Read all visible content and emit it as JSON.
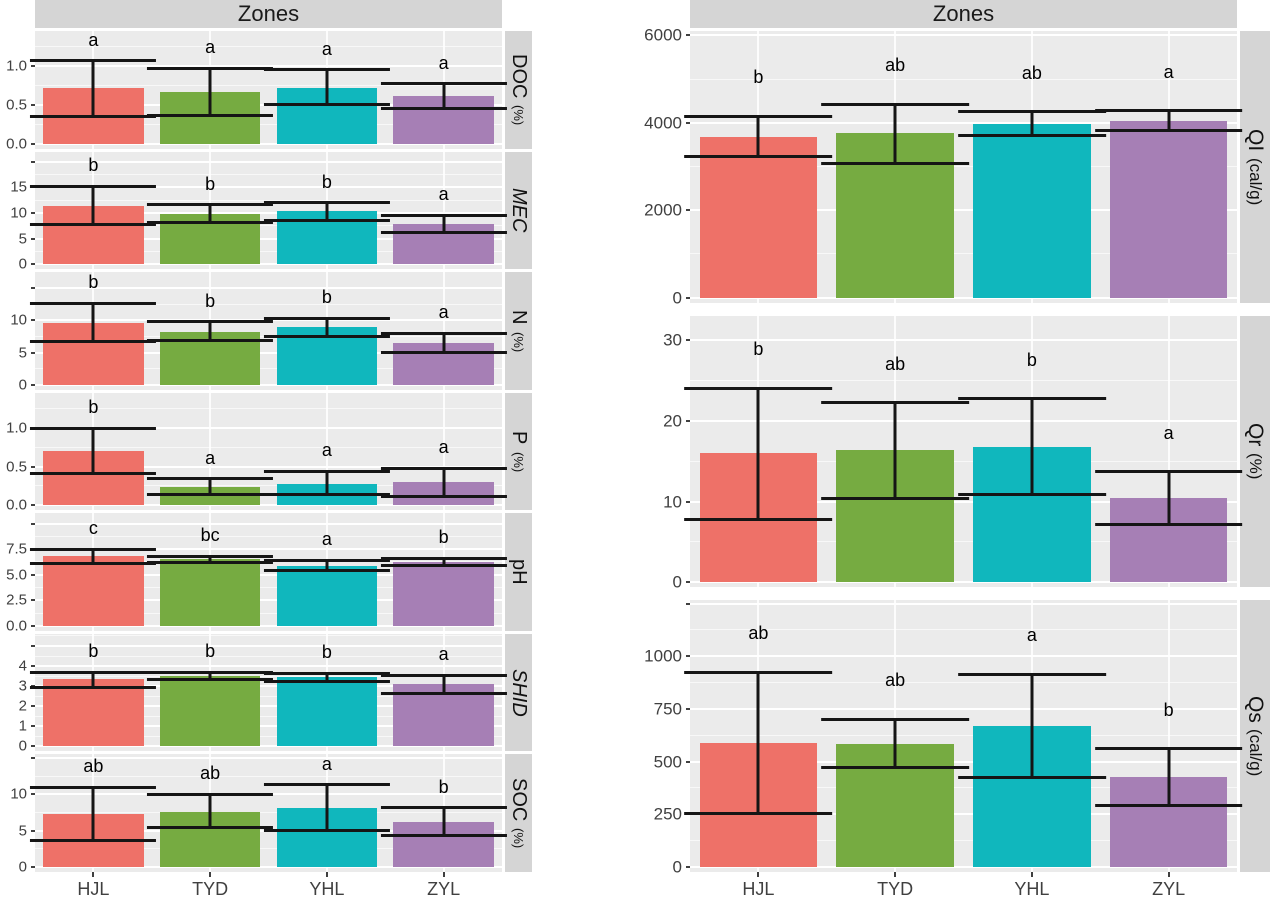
{
  "chart_data": {
    "type": "bar",
    "title": "Zones",
    "legend": "none",
    "grid": true,
    "error_bars": true,
    "categories": [
      "HJL",
      "TYD",
      "YHL",
      "ZYL"
    ],
    "columns": [
      {
        "title": "Zones",
        "side": "left",
        "panels": [
          {
            "id": "doc",
            "strip_label": "DOC",
            "strip_unit": "(%)",
            "italic": false,
            "ymax": 1.45,
            "extra_tick": null,
            "ticks": [
              {
                "v": 0,
                "label": "0.0"
              },
              {
                "v": 0.5,
                "label": "0.5"
              },
              {
                "v": 1.0,
                "label": "1.0"
              }
            ],
            "values": [
              0.72,
              0.66,
              0.72,
              0.61
            ],
            "err_low": [
              0.35,
              0.36,
              0.5,
              0.45
            ],
            "err_high": [
              1.07,
              0.97,
              0.95,
              0.77
            ],
            "letters": [
              "a",
              "a",
              "a",
              "a"
            ]
          },
          {
            "id": "mec",
            "strip_label": "MEC",
            "strip_unit": "",
            "italic": true,
            "ymax": 22.0,
            "extra_tick": 20,
            "ticks": [
              {
                "v": 0,
                "label": "0"
              },
              {
                "v": 5,
                "label": "5"
              },
              {
                "v": 10,
                "label": "10"
              },
              {
                "v": 15,
                "label": "15"
              }
            ],
            "values": [
              11.4,
              9.9,
              10.3,
              7.9
            ],
            "err_low": [
              7.8,
              8.2,
              8.6,
              6.2
            ],
            "err_high": [
              15.2,
              11.6,
              12.0,
              9.6
            ],
            "letters": [
              "b",
              "b",
              "b",
              "a"
            ]
          },
          {
            "id": "n",
            "strip_label": "N",
            "strip_unit": "(%)",
            "italic": false,
            "ymax": 17.5,
            "extra_tick": 15,
            "ticks": [
              {
                "v": 0,
                "label": "0"
              },
              {
                "v": 5,
                "label": "5"
              },
              {
                "v": 10,
                "label": "10"
              }
            ],
            "values": [
              9.6,
              8.2,
              8.9,
              6.5
            ],
            "err_low": [
              6.8,
              6.9,
              7.5,
              5.0
            ],
            "err_high": [
              12.7,
              9.8,
              10.3,
              8.0
            ],
            "letters": [
              "b",
              "b",
              "b",
              "a"
            ]
          },
          {
            "id": "p",
            "strip_label": "P",
            "strip_unit": "(%)",
            "italic": false,
            "ymax": 1.45,
            "extra_tick": null,
            "ticks": [
              {
                "v": 0,
                "label": "0.0"
              },
              {
                "v": 0.5,
                "label": "0.5"
              },
              {
                "v": 1.0,
                "label": "1.0"
              }
            ],
            "values": [
              0.7,
              0.24,
              0.28,
              0.3
            ],
            "err_low": [
              0.41,
              0.14,
              0.14,
              0.12
            ],
            "err_high": [
              0.99,
              0.34,
              0.44,
              0.48
            ],
            "letters": [
              "b",
              "a",
              "a",
              "a"
            ]
          },
          {
            "id": "ph",
            "strip_label": "pH",
            "strip_unit": "",
            "italic": false,
            "ymax": 11.0,
            "extra_tick": 10,
            "ticks": [
              {
                "v": 0,
                "label": "0.0"
              },
              {
                "v": 2.5,
                "label": "2.5"
              },
              {
                "v": 5.0,
                "label": "5.0"
              },
              {
                "v": 7.5,
                "label": "7.5"
              }
            ],
            "values": [
              6.8,
              6.5,
              5.9,
              6.25
            ],
            "err_low": [
              6.1,
              6.2,
              5.4,
              5.9
            ],
            "err_high": [
              7.5,
              6.8,
              6.4,
              6.6
            ],
            "letters": [
              "c",
              "bc",
              "a",
              "b"
            ]
          },
          {
            "id": "shid",
            "strip_label": "SHID",
            "strip_unit": "",
            "italic": true,
            "ymax": 5.6,
            "extra_tick": 5,
            "ticks": [
              {
                "v": 0,
                "label": "0"
              },
              {
                "v": 1,
                "label": "1"
              },
              {
                "v": 2,
                "label": "2"
              },
              {
                "v": 3,
                "label": "3"
              },
              {
                "v": 4,
                "label": "4"
              }
            ],
            "values": [
              3.35,
              3.5,
              3.45,
              3.1
            ],
            "err_low": [
              2.95,
              3.35,
              3.25,
              2.65
            ],
            "err_high": [
              3.7,
              3.7,
              3.65,
              3.55
            ],
            "letters": [
              "b",
              "b",
              "b",
              "a"
            ]
          },
          {
            "id": "soc",
            "strip_label": "SOC",
            "strip_unit": "(%)",
            "italic": false,
            "ymax": 15.5,
            "extra_tick": 15,
            "ticks": [
              {
                "v": 0,
                "label": "0"
              },
              {
                "v": 5,
                "label": "5"
              },
              {
                "v": 10,
                "label": "10"
              }
            ],
            "values": [
              7.3,
              7.6,
              8.1,
              6.2
            ],
            "err_low": [
              3.6,
              5.4,
              5.0,
              4.3
            ],
            "err_high": [
              11.0,
              10.0,
              11.3,
              8.2
            ],
            "letters": [
              "ab",
              "ab",
              "a",
              "b"
            ]
          }
        ]
      },
      {
        "title": "Zones",
        "side": "right",
        "panels": [
          {
            "id": "qi",
            "strip_label": "QI",
            "strip_unit": "(cal/g)",
            "italic": false,
            "ymax": 6100,
            "extra_tick": null,
            "ticks": [
              {
                "v": 0,
                "label": "0"
              },
              {
                "v": 2000,
                "label": "2000"
              },
              {
                "v": 4000,
                "label": "4000"
              },
              {
                "v": 6000,
                "label": "6000"
              }
            ],
            "values": [
              3680,
              3760,
              3970,
              4050
            ],
            "err_low": [
              3220,
              3080,
              3720,
              3820
            ],
            "err_high": [
              4150,
              4420,
              4250,
              4280
            ],
            "letters": [
              "b",
              "ab",
              "ab",
              "a"
            ]
          },
          {
            "id": "qr",
            "strip_label": "Qr",
            "strip_unit": "(%)",
            "italic": false,
            "ymax": 33,
            "extra_tick": null,
            "ticks": [
              {
                "v": 0,
                "label": "0"
              },
              {
                "v": 10,
                "label": "10"
              },
              {
                "v": 20,
                "label": "20"
              },
              {
                "v": 30,
                "label": "30"
              }
            ],
            "values": [
              16.0,
              16.4,
              16.8,
              10.4
            ],
            "err_low": [
              7.8,
              10.4,
              10.9,
              7.2
            ],
            "err_high": [
              24.0,
              22.2,
              22.7,
              13.7
            ],
            "letters": [
              "b",
              "ab",
              "b",
              "a"
            ]
          },
          {
            "id": "qs",
            "strip_label": "Qs",
            "strip_unit": "(cal/g)",
            "italic": false,
            "ymax": 1265,
            "extra_tick": 1250,
            "ticks": [
              {
                "v": 0,
                "label": "0"
              },
              {
                "v": 250,
                "label": "250"
              },
              {
                "v": 500,
                "label": "500"
              },
              {
                "v": 750,
                "label": "750"
              },
              {
                "v": 1000,
                "label": "1000"
              }
            ],
            "values": [
              590,
              585,
              670,
              425
            ],
            "err_low": [
              255,
              470,
              425,
              290
            ],
            "err_high": [
              925,
              700,
              915,
              560
            ],
            "letters": [
              "ab",
              "ab",
              "a",
              "b"
            ]
          }
        ]
      }
    ]
  },
  "palette": {
    "bar_colors": [
      "#EE7168",
      "#76AB41",
      "#10B7BD",
      "#A67FB5"
    ],
    "panel_bg": "#EBEBEB",
    "strip_bg": "#D5D5D5",
    "grid_color": "#FFFFFF",
    "axis_text": "#404040",
    "error_bar": "#151515"
  }
}
